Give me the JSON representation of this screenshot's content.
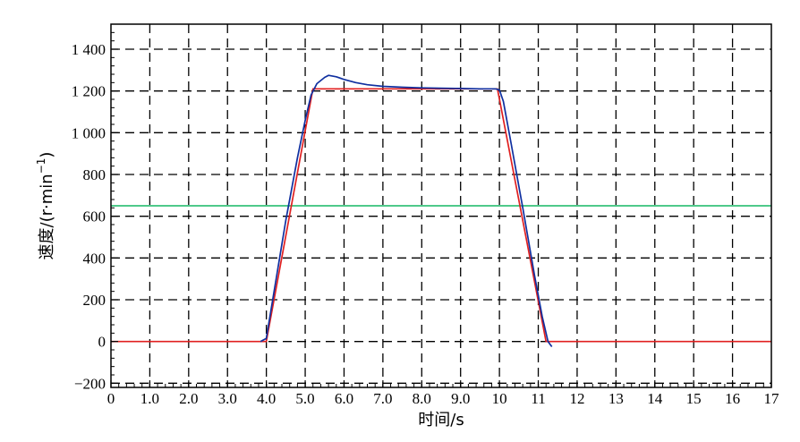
{
  "chart_data": {
    "type": "line",
    "xlabel": "时间/s",
    "ylabel_main": "速度/(r·min",
    "ylabel_sup": "−1",
    "ylabel_close": ")",
    "xlim": [
      0,
      17
    ],
    "ylim": [
      -220,
      1520
    ],
    "grid": true,
    "grid_style": "dashed",
    "x_ticks": [
      0,
      1,
      2,
      3,
      4,
      5,
      6,
      7,
      8,
      9,
      10,
      11,
      12,
      13,
      14,
      15,
      16,
      17
    ],
    "x_tick_labels": [
      "0",
      "1.0",
      "2.0",
      "3.0",
      "4.0",
      "5.0",
      "6.0",
      "7.0",
      "8.0",
      "9.0",
      "10",
      "11",
      "12",
      "13",
      "14",
      "15",
      "16",
      "17"
    ],
    "y_ticks": [
      -200,
      0,
      200,
      400,
      600,
      800,
      1000,
      1200,
      1400
    ],
    "y_tick_labels": [
      "−200",
      "0",
      "200",
      "400",
      "600",
      "800",
      "1 000",
      "1 200",
      "1 400"
    ],
    "series": [
      {
        "color": "#4fc98a",
        "x": [
          0,
          17
        ],
        "y": [
          650,
          650
        ]
      },
      {
        "color": "#e02020",
        "x": [
          0,
          3.9,
          4.0,
          5.2,
          9.95,
          11.2,
          11.35,
          17
        ],
        "y": [
          0,
          0,
          0,
          1210,
          1210,
          0,
          0,
          0
        ]
      },
      {
        "color": "#1030a0",
        "x": [
          3.85,
          3.9,
          4.0,
          4.2,
          4.5,
          4.8,
          5.0,
          5.15,
          5.3,
          5.5,
          5.6,
          5.8,
          6.0,
          6.3,
          6.6,
          7.0,
          7.5,
          8.0,
          8.5,
          9.0,
          9.5,
          9.9,
          10.0,
          10.1,
          10.3,
          10.6,
          10.9,
          11.1,
          11.25,
          11.35
        ],
        "y": [
          0,
          5,
          15,
          240,
          580,
          880,
          1060,
          1180,
          1235,
          1265,
          1275,
          1268,
          1255,
          1240,
          1230,
          1222,
          1218,
          1215,
          1213,
          1212,
          1210,
          1210,
          1205,
          1150,
          950,
          640,
          320,
          120,
          0,
          -25
        ]
      }
    ]
  }
}
